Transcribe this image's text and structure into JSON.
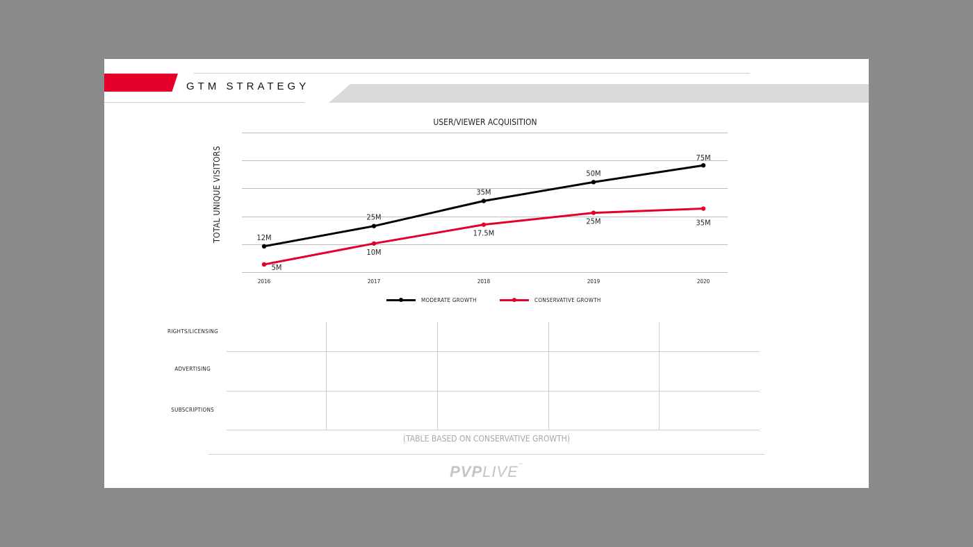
{
  "header": {
    "title": "GTM STRATEGY"
  },
  "colors": {
    "brand_red": "#e4002b",
    "line_black": "#000000",
    "grey_band": "#d9d9d9"
  },
  "chart_data": {
    "type": "line",
    "title": "USER/VIEWER ACQUISITION",
    "ylabel": "TOTAL UNIQUE VISITORS",
    "xlabel": "",
    "x": [
      "2016",
      "2017",
      "2018",
      "2019",
      "2020"
    ],
    "series": [
      {
        "name": "MODERATE GROWTH",
        "color": "#000000",
        "values": [
          12,
          25,
          35,
          50,
          75
        ],
        "labels": [
          "12M",
          "25M",
          "35M",
          "50M",
          "75M"
        ],
        "plot_y": [
          18.5,
          33,
          51,
          64.5,
          76.5
        ]
      },
      {
        "name": "CONSERVATIVE GROWTH",
        "color": "#e4002b",
        "values": [
          5,
          10,
          17.5,
          25,
          35
        ],
        "labels": [
          "5M",
          "10M",
          "17.5M",
          "25M",
          "35M"
        ],
        "plot_y": [
          5.5,
          20.5,
          34,
          42.5,
          45.5
        ]
      }
    ],
    "grid": true,
    "legend": "bottom-center"
  },
  "revenue_table": {
    "rows": [
      "RIGHTS/LICENSING",
      "ADVERTISING",
      "SUBSCRIPTIONS"
    ],
    "footnote": "(TABLE BASED ON CONSERVATIVE GROWTH)"
  },
  "logo": {
    "part1": "PVP",
    "part2": "LIVE",
    "tm": "™"
  }
}
